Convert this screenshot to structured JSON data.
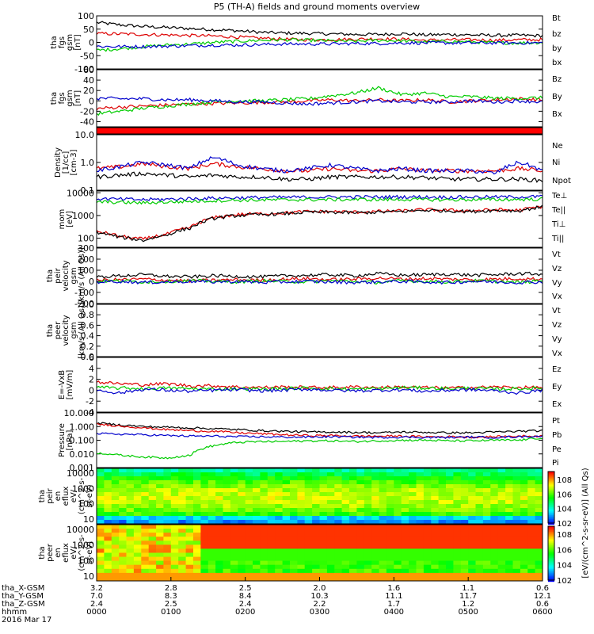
{
  "title": "P5 (TH-A) fields and ground moments overview",
  "chart_data": [
    {
      "type": "line",
      "panel": "fgs_gsm_total",
      "ylabel": [
        "tha",
        "fgs",
        "gsm",
        "[nT]"
      ],
      "yticks": [
        100,
        50,
        0,
        -50,
        -100
      ],
      "ylim": [
        -100,
        100
      ],
      "series": [
        {
          "name": "Bt",
          "color": "#000000",
          "values": [
            75,
            66,
            60,
            56,
            52,
            48,
            44,
            38,
            35,
            34,
            32,
            30,
            30,
            33,
            28,
            30,
            28,
            26,
            27,
            25
          ]
        },
        {
          "name": "bz",
          "color": "#dd0000",
          "values": [
            33,
            32,
            30,
            28,
            26,
            24,
            20,
            16,
            12,
            10,
            10,
            12,
            14,
            12,
            8,
            10,
            10,
            8,
            10,
            10
          ]
        },
        {
          "name": "by",
          "color": "#00cc00",
          "values": [
            -30,
            -24,
            -16,
            -10,
            -6,
            0,
            4,
            8,
            10,
            8,
            6,
            4,
            8,
            6,
            2,
            4,
            2,
            -2,
            -2,
            0
          ]
        },
        {
          "name": "bx",
          "color": "#0000cc",
          "values": [
            -15,
            -16,
            -16,
            -14,
            -12,
            -10,
            -10,
            -8,
            -6,
            -6,
            -6,
            -4,
            -4,
            -2,
            -2,
            -2,
            -2,
            -2,
            -2,
            -2
          ]
        }
      ]
    },
    {
      "type": "line",
      "panel": "fgs_gsm_components",
      "ylabel": [
        "tha",
        "fgs",
        "gsm",
        "[nT]"
      ],
      "yticks": [
        60,
        40,
        20,
        0,
        -20,
        -40
      ],
      "ylim": [
        -50,
        60
      ],
      "series": [
        {
          "name": "Bz",
          "color": "#dd0000",
          "values": [
            -15,
            -12,
            -10,
            -8,
            -6,
            -5,
            -4,
            -3,
            -2,
            0,
            2,
            0,
            2,
            0,
            2,
            -2,
            0,
            2,
            4,
            2
          ]
        },
        {
          "name": "By",
          "color": "#00cc00",
          "values": [
            -25,
            -20,
            -14,
            -10,
            -6,
            -2,
            0,
            0,
            2,
            4,
            10,
            15,
            25,
            12,
            15,
            8,
            8,
            5,
            5,
            6
          ]
        },
        {
          "name": "Bx",
          "color": "#0000cc",
          "values": [
            5,
            4,
            4,
            2,
            2,
            0,
            -2,
            -2,
            -4,
            -6,
            -4,
            -2,
            0,
            -2,
            -2,
            -2,
            0,
            -2,
            0,
            -2
          ]
        }
      ]
    },
    {
      "type": "line",
      "panel": "density",
      "ylabel": [
        "Density",
        "[1/cc]",
        "[cm-3]"
      ],
      "yticks": [
        "10.0",
        "1.0",
        "0.1"
      ],
      "ylim": [
        0.1,
        10.0
      ],
      "scale": "log",
      "series": [
        {
          "name": "Ne",
          "color": "#dd0000",
          "values": [
            0.6,
            0.7,
            0.9,
            0.7,
            0.6,
            0.9,
            0.7,
            0.6,
            0.5,
            0.5,
            0.6,
            0.5,
            0.5,
            0.6,
            0.5,
            0.5,
            0.5,
            0.5,
            0.6,
            0.5
          ]
        },
        {
          "name": "Ni",
          "color": "#000000",
          "values": [
            0.3,
            0.35,
            0.4,
            0.35,
            0.3,
            0.35,
            0.3,
            0.3,
            0.25,
            0.25,
            0.3,
            0.3,
            0.3,
            0.3,
            0.28,
            0.25,
            0.25,
            0.25,
            0.25,
            0.22
          ]
        },
        {
          "name": "Npot",
          "color": "#0000cc",
          "values": [
            0.5,
            0.7,
            1.0,
            0.8,
            0.6,
            1.5,
            0.8,
            0.6,
            0.5,
            0.6,
            0.8,
            0.6,
            0.5,
            0.6,
            0.5,
            0.5,
            0.5,
            0.4,
            1.0,
            0.5
          ]
        }
      ]
    },
    {
      "type": "line",
      "panel": "temperature",
      "ylabel": [
        "mom",
        "[eV]"
      ],
      "yticks": [
        "10000",
        "1000",
        "100"
      ],
      "ylim": [
        40,
        12000
      ],
      "scale": "log",
      "series": [
        {
          "name": "Te⊥",
          "color": "#dd0000",
          "values": [
            200,
            120,
            90,
            150,
            300,
            800,
            1100,
            1200,
            1300,
            1500,
            1500,
            1400,
            1500,
            1600,
            1800,
            1700,
            1600,
            1800,
            1700,
            2500
          ]
        },
        {
          "name": "Te||",
          "color": "#000000",
          "values": [
            180,
            110,
            80,
            140,
            280,
            750,
            1000,
            1100,
            1200,
            1400,
            1400,
            1300,
            1400,
            1500,
            1700,
            1600,
            1500,
            1700,
            1600,
            2400
          ]
        },
        {
          "name": "Ti⊥",
          "color": "#0000cc",
          "values": [
            5500,
            5200,
            5000,
            5200,
            5500,
            5800,
            6000,
            6200,
            6300,
            6400,
            6500,
            6600,
            6500,
            6600,
            6500,
            6400,
            6500,
            6500,
            6600,
            6800
          ]
        },
        {
          "name": "Ti||",
          "color": "#00cc00",
          "values": [
            4000,
            3800,
            3600,
            3900,
            4200,
            4500,
            4700,
            4800,
            4900,
            5000,
            5000,
            5100,
            5000,
            5100,
            5000,
            4900,
            5000,
            5000,
            5100,
            5200
          ]
        }
      ]
    },
    {
      "type": "line",
      "panel": "peir_velocity",
      "ylabel": [
        "tha",
        "peir",
        "velocity",
        "gsm",
        "[km/s (All Qs)]"
      ],
      "yticks": [
        300,
        200,
        100,
        0,
        -100,
        -200
      ],
      "ylim": [
        -200,
        300
      ],
      "series": [
        {
          "name": "Vt",
          "color": "#000000",
          "values": [
            40,
            50,
            60,
            45,
            40,
            50,
            45,
            40,
            50,
            55,
            60,
            50,
            70,
            55,
            60,
            65,
            55,
            60,
            70,
            65
          ]
        },
        {
          "name": "Vz",
          "color": "#dd0000",
          "values": [
            10,
            15,
            20,
            10,
            5,
            10,
            15,
            10,
            20,
            25,
            15,
            20,
            30,
            20,
            25,
            20,
            15,
            20,
            25,
            20
          ]
        },
        {
          "name": "Vy",
          "color": "#00cc00",
          "values": [
            0,
            5,
            -5,
            0,
            5,
            0,
            -5,
            5,
            0,
            -5,
            5,
            0,
            -10,
            5,
            0,
            -5,
            5,
            0,
            -10,
            5
          ]
        },
        {
          "name": "Vx",
          "color": "#0000cc",
          "values": [
            -5,
            0,
            -10,
            -5,
            0,
            -5,
            0,
            -10,
            -5,
            0,
            -5,
            -10,
            -5,
            0,
            -5,
            -10,
            0,
            -5,
            -10,
            -5
          ]
        }
      ]
    },
    {
      "type": "line",
      "panel": "peer_velocity",
      "ylabel": [
        "tha",
        "peer",
        "velocity",
        "gsm",
        "[km/s (All Qs)]"
      ],
      "yticks": [
        "1.0",
        "0.8",
        "0.6",
        "0.4",
        "0.2",
        "0.0"
      ],
      "ylim": [
        0,
        1
      ],
      "series": [
        {
          "name": "Vt",
          "color": "#000000",
          "values": []
        },
        {
          "name": "Vz",
          "color": "#dd0000",
          "values": []
        },
        {
          "name": "Vy",
          "color": "#00cc00",
          "values": []
        },
        {
          "name": "Vx",
          "color": "#0000cc",
          "values": []
        }
      ]
    },
    {
      "type": "line",
      "panel": "efield",
      "ylabel": [
        "E=-VxB",
        "[mV/m]"
      ],
      "yticks": [
        6,
        4,
        2,
        0,
        -2,
        -4
      ],
      "ylim": [
        -4,
        6
      ],
      "series": [
        {
          "name": "Ez",
          "color": "#dd0000",
          "values": [
            1.5,
            1.2,
            1.0,
            1.2,
            0.8,
            0.8,
            0.6,
            0.5,
            0.6,
            0.5,
            0.5,
            0.6,
            0.5,
            0.6,
            0.5,
            0.4,
            0.5,
            0.6,
            0.5,
            0.5
          ]
        },
        {
          "name": "Ey",
          "color": "#00cc00",
          "values": [
            0.5,
            0.4,
            0.3,
            0.4,
            0.3,
            0.2,
            0.3,
            0.2,
            0.3,
            0.4,
            0.3,
            0.2,
            0.3,
            0.5,
            0.4,
            0.3,
            0.4,
            0.2,
            0.3,
            0.3
          ]
        },
        {
          "name": "Ex",
          "color": "#0000cc",
          "values": [
            0,
            -0.5,
            0.2,
            0,
            -0.2,
            0,
            0.1,
            -0.1,
            0,
            0.2,
            0,
            -0.1,
            0,
            0.1,
            -0.2,
            0,
            0.1,
            -0.1,
            -0.5,
            0
          ]
        }
      ]
    },
    {
      "type": "line",
      "panel": "pressure",
      "ylabel": [
        "Pressure",
        "[nPa]"
      ],
      "yticks": [
        "10.000",
        "1.000",
        "0.100",
        "0.010",
        "0.001"
      ],
      "ylim": [
        0.001,
        10
      ],
      "scale": "log",
      "series": [
        {
          "name": "Pt",
          "color": "#000000",
          "values": [
            1.8,
            1.3,
            1.0,
            0.9,
            0.8,
            0.7,
            0.6,
            0.5,
            0.45,
            0.4,
            0.4,
            0.38,
            0.35,
            0.4,
            0.38,
            0.35,
            0.35,
            0.4,
            0.45,
            0.5
          ]
        },
        {
          "name": "Pb",
          "color": "#dd0000",
          "values": [
            1.5,
            1.1,
            0.8,
            0.6,
            0.5,
            0.45,
            0.35,
            0.3,
            0.25,
            0.22,
            0.22,
            0.2,
            0.2,
            0.2,
            0.18,
            0.18,
            0.17,
            0.18,
            0.2,
            0.2
          ]
        },
        {
          "name": "Pe",
          "color": "#00cc00",
          "values": [
            0.012,
            0.008,
            0.006,
            0.005,
            0.008,
            0.04,
            0.07,
            0.08,
            0.08,
            0.09,
            0.09,
            0.08,
            0.09,
            0.1,
            0.1,
            0.09,
            0.09,
            0.1,
            0.1,
            0.15
          ]
        },
        {
          "name": "Pi",
          "color": "#0000cc",
          "values": [
            0.3,
            0.28,
            0.25,
            0.22,
            0.2,
            0.2,
            0.18,
            0.18,
            0.17,
            0.17,
            0.18,
            0.17,
            0.16,
            0.17,
            0.16,
            0.16,
            0.17,
            0.16,
            0.18,
            0.2
          ]
        }
      ]
    },
    {
      "type": "heatmap",
      "panel": "peir_energy_flux",
      "ylabel": [
        "tha",
        "peir",
        "en",
        "eflux",
        "eV/",
        "(cm^2-s-",
        "sr-eV)"
      ],
      "yticks": [
        "10000",
        "1000",
        "100",
        "10"
      ],
      "ylim": [
        5,
        20000
      ],
      "scale": "log"
    },
    {
      "type": "heatmap",
      "panel": "peer_energy_flux",
      "ylabel": [
        "tha",
        "peer",
        "en",
        "eflux",
        "eV/",
        "(cm^2-s-",
        "sr-eV)"
      ],
      "yticks": [
        "10000",
        "1000",
        "100",
        "10"
      ],
      "ylim": [
        5,
        20000
      ],
      "scale": "log"
    }
  ],
  "colorbar": {
    "label": "[eV/(cm^2-s-sr-eV)] (All Qs)",
    "ticks_top": [
      "10^8",
      "10^6",
      "10^4",
      "10^2"
    ],
    "ticks_bottom": [
      "10^8",
      "10^6",
      "10^4",
      "10^2"
    ]
  },
  "x_axis": {
    "tick_rows": [
      {
        "label": "tha_X-GSM",
        "values": [
          "3.2",
          "2.8",
          "2.5",
          "2.0",
          "1.6",
          "1.1",
          "0.6"
        ]
      },
      {
        "label": "tha_Y-GSM",
        "values": [
          "7.0",
          "8.3",
          "8.4",
          "10.3",
          "11.1",
          "11.7",
          "12.1"
        ]
      },
      {
        "label": "tha_Z-GSM",
        "values": [
          "2.4",
          "2.5",
          "2.4",
          "2.2",
          "1.7",
          "1.2",
          "0.6"
        ]
      },
      {
        "label": "hhmm",
        "values": [
          "0000",
          "0100",
          "0200",
          "0300",
          "0400",
          "0500",
          "0600"
        ]
      }
    ],
    "date": "2016 Mar 17"
  }
}
